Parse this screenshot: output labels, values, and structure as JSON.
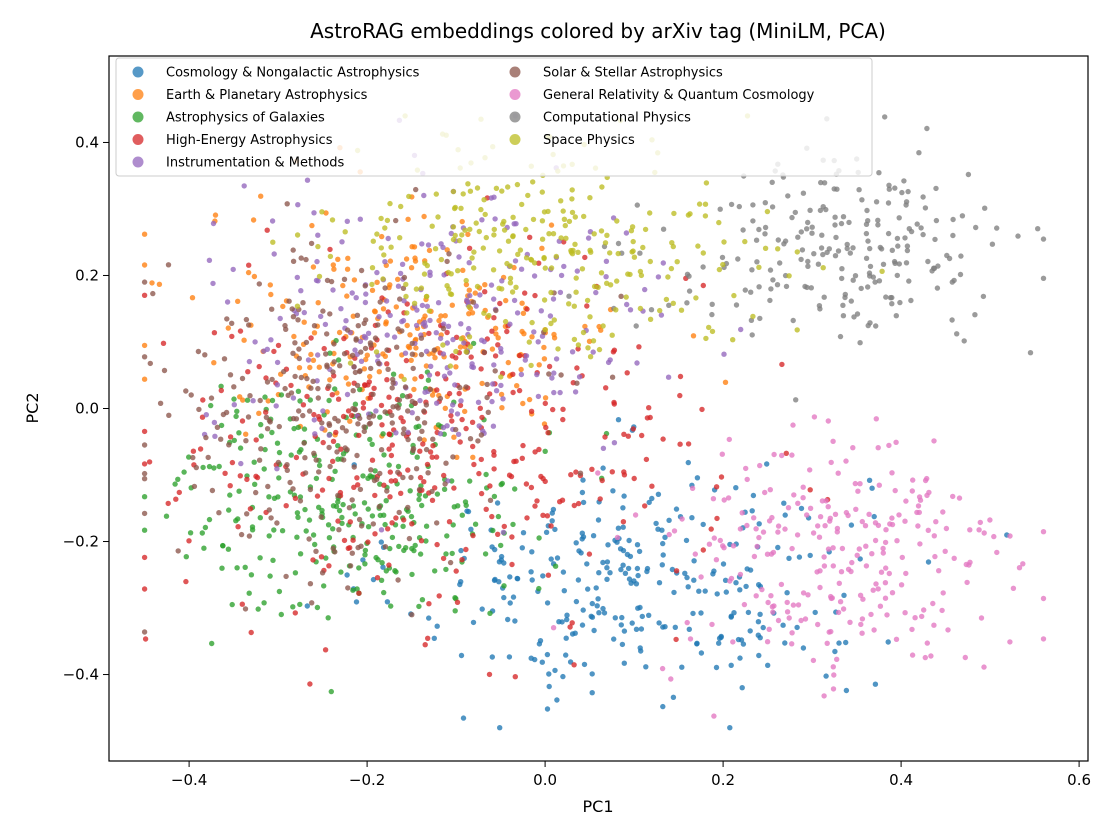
{
  "chart_data": {
    "type": "scatter",
    "title": "AstroRAG embeddings colored by arXiv tag (MiniLM, PCA)",
    "xlabel": "PC1",
    "ylabel": "PC2",
    "xlim": [
      -0.49,
      0.61
    ],
    "ylim": [
      -0.53,
      0.53
    ],
    "xticks": [
      -0.4,
      -0.2,
      0.0,
      0.2,
      0.4,
      0.6
    ],
    "xtick_labels": [
      "−0.4",
      "−0.2",
      "0.0",
      "0.2",
      "0.4",
      "0.6"
    ],
    "yticks": [
      -0.4,
      -0.2,
      0.0,
      0.2,
      0.4
    ],
    "ytick_labels": [
      "−0.4",
      "−0.2",
      "0.0",
      "0.2",
      "0.4"
    ],
    "grid": false,
    "legend_position": "top-left",
    "legend_columns": 2,
    "series": [
      {
        "name": "Cosmology & Nongalactic Astrophysics",
        "color": "#1f77b4",
        "cluster": {
          "cx": 0.1,
          "cy": -0.26,
          "sx": 0.13,
          "sy": 0.09,
          "n": 300
        }
      },
      {
        "name": "Earth & Planetary Astrophysics",
        "color": "#ff7f0e",
        "cluster": {
          "cx": -0.15,
          "cy": 0.12,
          "sx": 0.12,
          "sy": 0.09,
          "n": 230
        }
      },
      {
        "name": "Astrophysics of Galaxies",
        "color": "#2ca02c",
        "cluster": {
          "cx": -0.22,
          "cy": -0.13,
          "sx": 0.1,
          "sy": 0.09,
          "n": 300
        }
      },
      {
        "name": "High-Energy Astrophysics",
        "color": "#d62728",
        "cluster": {
          "cx": -0.12,
          "cy": -0.05,
          "sx": 0.15,
          "sy": 0.13,
          "n": 360
        }
      },
      {
        "name": "Instrumentation & Methods",
        "color": "#9467bd",
        "cluster": {
          "cx": -0.12,
          "cy": 0.12,
          "sx": 0.13,
          "sy": 0.1,
          "n": 260
        }
      },
      {
        "name": "Solar & Stellar Astrophysics",
        "color": "#8c564b",
        "cluster": {
          "cx": -0.23,
          "cy": 0.0,
          "sx": 0.1,
          "sy": 0.12,
          "n": 300
        }
      },
      {
        "name": "General Relativity & Quantum Cosmology",
        "color": "#e377c2",
        "cluster": {
          "cx": 0.33,
          "cy": -0.23,
          "sx": 0.1,
          "sy": 0.1,
          "n": 260
        }
      },
      {
        "name": "Computational Physics",
        "color": "#7f7f7f",
        "cluster": {
          "cx": 0.33,
          "cy": 0.24,
          "sx": 0.1,
          "sy": 0.07,
          "n": 230
        }
      },
      {
        "name": "Space Physics",
        "color": "#bcbd22",
        "cluster": {
          "cx": 0.0,
          "cy": 0.24,
          "sx": 0.12,
          "sy": 0.08,
          "n": 280
        }
      }
    ]
  }
}
